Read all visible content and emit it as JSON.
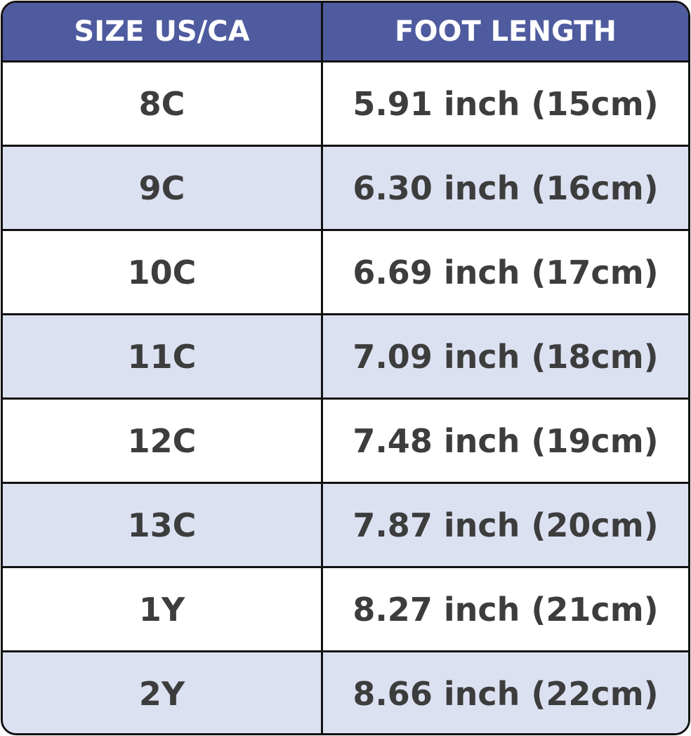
{
  "colors": {
    "header_bg": "#4f5b9f",
    "header_text": "#ffffff",
    "alt_row_bg": "#dce1f2",
    "text": "#3d3d3d",
    "border": "#111111"
  },
  "headers": [
    "SIZE US/CA",
    "FOOT LENGTH"
  ],
  "rows": [
    {
      "size": "8C",
      "length": "5.91 inch (15cm)"
    },
    {
      "size": "9C",
      "length": "6.30 inch (16cm)"
    },
    {
      "size": "10C",
      "length": "6.69 inch (17cm)"
    },
    {
      "size": "11C",
      "length": "7.09 inch (18cm)"
    },
    {
      "size": "12C",
      "length": "7.48 inch (19cm)"
    },
    {
      "size": "13C",
      "length": "7.87 inch (20cm)"
    },
    {
      "size": "1Y",
      "length": "8.27 inch (21cm)"
    },
    {
      "size": "2Y",
      "length": "8.66 inch (22cm)"
    }
  ]
}
